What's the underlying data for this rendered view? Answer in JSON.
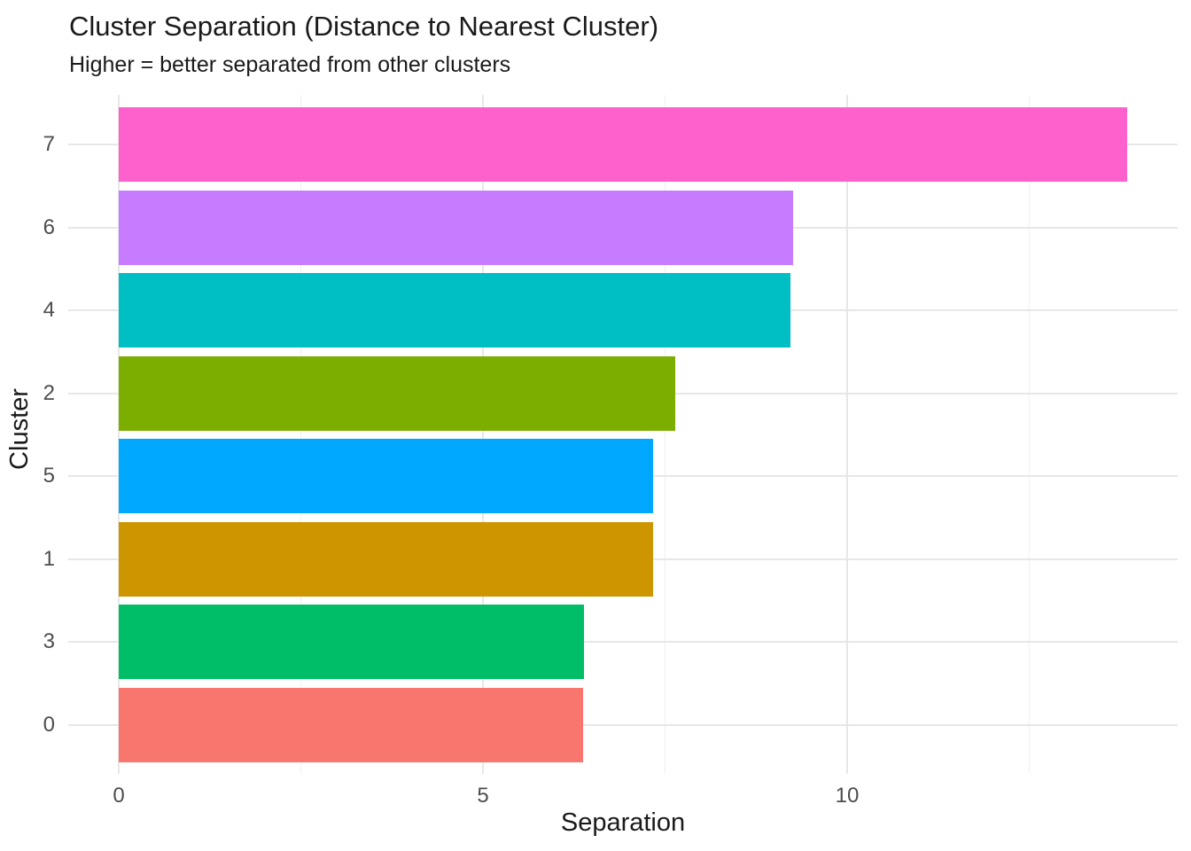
{
  "chart_data": {
    "type": "bar",
    "orientation": "horizontal",
    "title": "Cluster Separation (Distance to Nearest Cluster)",
    "subtitle": "Higher = better separated from other clusters",
    "xlabel": "Separation",
    "ylabel": "Cluster",
    "categories": [
      "7",
      "6",
      "4",
      "2",
      "5",
      "1",
      "3",
      "0"
    ],
    "values": [
      13.84,
      9.26,
      9.22,
      7.64,
      7.33,
      7.34,
      6.39,
      6.38
    ],
    "bar_colors": [
      "#FF61CC",
      "#C77CFF",
      "#00BFC4",
      "#7CAE00",
      "#00A9FF",
      "#CD9600",
      "#00BE67",
      "#F8766D"
    ],
    "x_ticks": [
      "0",
      "5",
      "10"
    ],
    "x_tick_values": [
      0,
      5,
      10
    ],
    "x_minor_tick_values": [
      2.5,
      7.5,
      12.5
    ],
    "xlim": [
      0,
      14.53
    ],
    "grid": true,
    "legend": false,
    "colors": {
      "background": "#FFFFFF",
      "grid_major": "#E7E7E7",
      "grid_minor": "#F0F0F0",
      "tick_label": "#4D4D4D",
      "text": "#1A1A1A"
    }
  }
}
